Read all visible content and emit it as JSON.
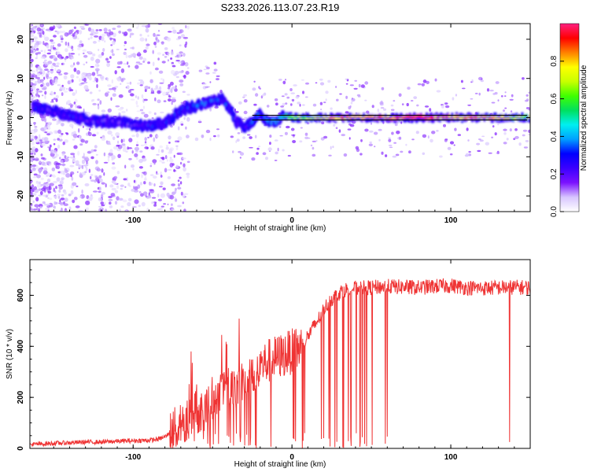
{
  "title": "S233.2026.113.07.23.R19",
  "chart_data": [
    {
      "type": "heatmap",
      "xlabel": "Height of straight line (km)",
      "ylabel": "Frequency (Hz)",
      "xlim": [
        -165,
        150
      ],
      "ylim": [
        -24,
        24
      ],
      "xticks": [
        -100,
        0,
        100
      ],
      "yticks": [
        -20,
        -10,
        0,
        10,
        20
      ],
      "colorbar": {
        "label": "Normalized spectral amplitude",
        "range": [
          0,
          1
        ],
        "ticks": [
          0.0,
          0.2,
          0.4,
          0.6,
          0.8
        ],
        "colormap": [
          "#ffffff",
          "#d7c5ff",
          "#7b12ff",
          "#3b00ff",
          "#0000ff",
          "#00a0ff",
          "#00f0f0",
          "#00e060",
          "#40ff00",
          "#c8ff00",
          "#ffff00",
          "#ff8000",
          "#ff0000",
          "#ff2080"
        ]
      },
      "ridge": {
        "x": [
          -160,
          -150,
          -140,
          -130,
          -120,
          -110,
          -100,
          -90,
          -80,
          -70,
          -60,
          -50,
          -45,
          -40,
          -35,
          -30,
          -25,
          -20,
          -15,
          -10,
          -5,
          0,
          20,
          40,
          60,
          80,
          100,
          120,
          148
        ],
        "freq": [
          2.5,
          1.5,
          0.5,
          -0.5,
          -1,
          -1,
          -2,
          -2,
          -1.5,
          2,
          3,
          4,
          5,
          3,
          -1,
          -2.5,
          -1,
          1,
          -1,
          -1,
          0.5,
          0,
          0,
          0,
          0,
          0,
          0,
          0,
          0
        ],
        "amplitude": [
          0.25,
          0.22,
          0.25,
          0.22,
          0.2,
          0.22,
          0.2,
          0.25,
          0.25,
          0.3,
          0.35,
          0.35,
          0.3,
          0.3,
          0.25,
          0.2,
          0.3,
          0.35,
          0.35,
          0.4,
          0.5,
          0.6,
          0.75,
          0.85,
          0.85,
          0.9,
          0.85,
          0.8,
          0.7
        ]
      },
      "reference_line": {
        "freq": 0,
        "x_from": -25,
        "x_to": 148
      }
    },
    {
      "type": "line",
      "xlabel": "Height of straight line (km)",
      "ylabel": "SNR (10 * v/v)",
      "xlim": [
        -165,
        150
      ],
      "ylim": [
        0,
        740
      ],
      "xticks": [
        -100,
        0,
        100
      ],
      "yticks": [
        0,
        200,
        400,
        600
      ],
      "line_color": "#ef3434",
      "series": [
        {
          "x": [
            -165,
            -150,
            -140,
            -130,
            -120,
            -110,
            -100,
            -90,
            -85,
            -80,
            -75,
            -70,
            -66,
            -62,
            -58,
            -54,
            -50,
            -46,
            -42,
            -38,
            -34,
            -30,
            -26,
            -22,
            -18,
            -14,
            -10,
            -6,
            -2,
            2,
            6,
            10,
            14,
            18,
            20,
            24,
            28,
            32,
            36,
            40,
            50,
            60,
            70,
            80,
            90,
            100,
            110,
            120,
            130,
            140,
            150
          ],
          "y": [
            15,
            20,
            22,
            25,
            25,
            28,
            30,
            32,
            35,
            45,
            70,
            85,
            110,
            140,
            150,
            160,
            200,
            220,
            240,
            260,
            240,
            280,
            300,
            320,
            330,
            345,
            355,
            365,
            375,
            385,
            400,
            440,
            480,
            520,
            545,
            580,
            600,
            620,
            625,
            628,
            630,
            635,
            632,
            630,
            635,
            638,
            630,
            628,
            630,
            632,
            630
          ]
        }
      ]
    }
  ]
}
